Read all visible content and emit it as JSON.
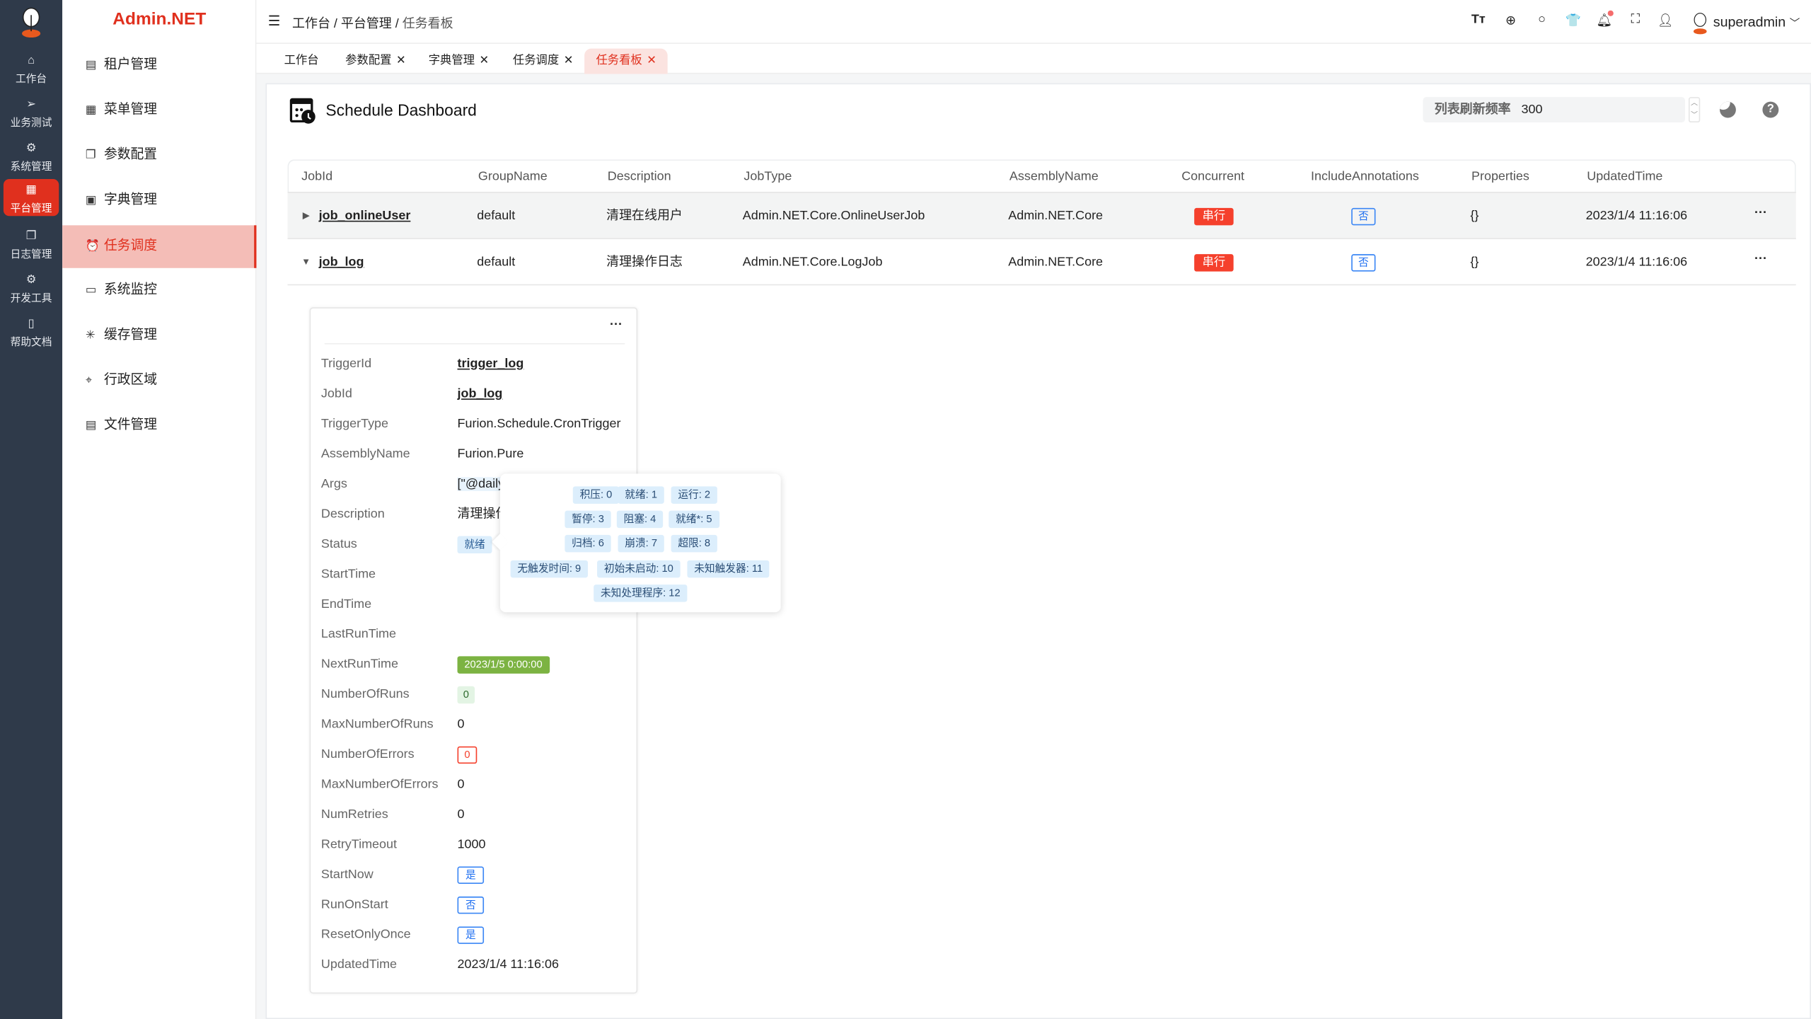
{
  "rail": {
    "items": [
      {
        "label": "工作台",
        "icon": "home-icon"
      },
      {
        "label": "业务测试",
        "icon": "send-icon"
      },
      {
        "label": "系统管理",
        "icon": "gear-icon"
      },
      {
        "label": "平台管理",
        "icon": "grid-icon",
        "active": true
      },
      {
        "label": "日志管理",
        "icon": "copy-icon"
      },
      {
        "label": "开发工具",
        "icon": "chip-icon"
      },
      {
        "label": "帮助文档",
        "icon": "notebook-icon"
      }
    ]
  },
  "brand": "Admin.NET",
  "sidebar": {
    "items": [
      {
        "label": "租户管理"
      },
      {
        "label": "菜单管理"
      },
      {
        "label": "参数配置"
      },
      {
        "label": "字典管理"
      },
      {
        "label": "任务调度",
        "active": true
      },
      {
        "label": "系统监控"
      },
      {
        "label": "缓存管理"
      },
      {
        "label": "行政区域"
      },
      {
        "label": "文件管理"
      }
    ]
  },
  "breadcrumb": [
    "工作台",
    "平台管理",
    "任务看板"
  ],
  "header": {
    "user": "superadmin"
  },
  "tabs": [
    {
      "label": "工作台"
    },
    {
      "label": "参数配置"
    },
    {
      "label": "字典管理"
    },
    {
      "label": "任务调度"
    },
    {
      "label": "任务看板",
      "active": true
    }
  ],
  "dashboard": {
    "title": "Schedule Dashboard",
    "refresh_label": "列表刷新频率",
    "refresh_value": "300"
  },
  "table": {
    "columns": [
      "JobId",
      "GroupName",
      "Description",
      "JobType",
      "AssemblyName",
      "Concurrent",
      "IncludeAnnotations",
      "Properties",
      "UpdatedTime"
    ],
    "rows": [
      {
        "JobId": "job_onlineUser",
        "GroupName": "default",
        "Description": "清理在线用户",
        "JobType": "Admin.NET.Core.OnlineUserJob",
        "AssemblyName": "Admin.NET.Core",
        "Concurrent": "串行",
        "IncludeAnnotations": "否",
        "Properties": "{}",
        "UpdatedTime": "2023/1/4 11:16:06",
        "expanded": false
      },
      {
        "JobId": "job_log",
        "GroupName": "default",
        "Description": "清理操作日志",
        "JobType": "Admin.NET.Core.LogJob",
        "AssemblyName": "Admin.NET.Core",
        "Concurrent": "串行",
        "IncludeAnnotations": "否",
        "Properties": "{}",
        "UpdatedTime": "2023/1/4 11:16:06",
        "expanded": true
      }
    ]
  },
  "trigger": {
    "fields": [
      {
        "label": "TriggerId",
        "value": "trigger_log"
      },
      {
        "label": "JobId",
        "value": "job_log"
      },
      {
        "label": "TriggerType",
        "value": "Furion.Schedule.CronTrigger"
      },
      {
        "label": "AssemblyName",
        "value": "Furion.Pure"
      },
      {
        "label": "Args",
        "value": "[\"@daily"
      },
      {
        "label": "Description",
        "value": "清理操作"
      },
      {
        "label": "Status",
        "value": "就绪"
      },
      {
        "label": "StartTime",
        "value": ""
      },
      {
        "label": "EndTime",
        "value": ""
      },
      {
        "label": "LastRunTime",
        "value": ""
      },
      {
        "label": "NextRunTime",
        "value": "2023/1/5 0:00:00"
      },
      {
        "label": "NumberOfRuns",
        "value": "0"
      },
      {
        "label": "MaxNumberOfRuns",
        "value": "0"
      },
      {
        "label": "NumberOfErrors",
        "value": "0"
      },
      {
        "label": "MaxNumberOfErrors",
        "value": "0"
      },
      {
        "label": "NumRetries",
        "value": "0"
      },
      {
        "label": "RetryTimeout",
        "value": "1000"
      },
      {
        "label": "StartNow",
        "value": "是"
      },
      {
        "label": "RunOnStart",
        "value": "否"
      },
      {
        "label": "ResetOnlyOnce",
        "value": "是"
      },
      {
        "label": "UpdatedTime",
        "value": "2023/1/4 11:16:06"
      }
    ]
  },
  "status_popover": [
    "积压: 0",
    "就绪: 1",
    "运行: 2",
    "暂停: 3",
    "阻塞: 4",
    "就绪*: 5",
    "归档: 6",
    "崩溃: 7",
    "超限: 8",
    "无触发时间: 9",
    "初始未启动: 10",
    "未知触发器: 11",
    "未知处理程序: 12"
  ],
  "colors": {
    "accent": "#e0301e",
    "rail": "#2f3a4a",
    "success": "#7cb342",
    "link_blue": "#1f6ff0"
  }
}
